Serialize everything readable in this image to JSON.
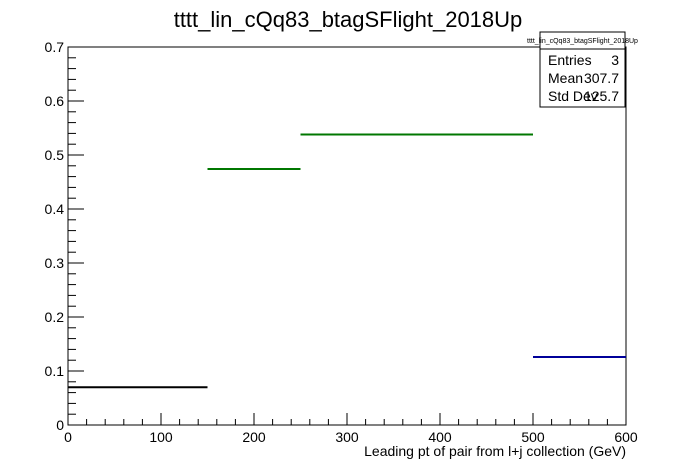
{
  "chart_data": {
    "type": "bar",
    "title": "tttt_lin_cQq83_btagSFlight_2018Up",
    "xlabel": "Leading pt of pair from l+j collection (GeV)",
    "ylabel": "",
    "xlim": [
      0,
      600
    ],
    "ylim": [
      0,
      0.7
    ],
    "x_ticks": [
      "0",
      "100",
      "200",
      "300",
      "400",
      "500",
      "600"
    ],
    "y_ticks": [
      "0",
      "0.1",
      "0.2",
      "0.3",
      "0.4",
      "0.5",
      "0.6",
      "0.7"
    ],
    "grid": false,
    "bins": [
      {
        "x_low": 0,
        "x_high": 150,
        "value": 0.07,
        "color": "#000000"
      },
      {
        "x_low": 150,
        "x_high": 250,
        "value": 0.474,
        "color": "#007700"
      },
      {
        "x_low": 250,
        "x_high": 500,
        "value": 0.538,
        "color": "#007700"
      },
      {
        "x_low": 500,
        "x_high": 600,
        "value": 0.126,
        "color": "#000099"
      }
    ],
    "stats_box": {
      "title": "tttt_lin_cQq83_btagSFlight_2018Up",
      "entries_label": "Entries",
      "entries_value": "3",
      "mean_label": "Mean",
      "mean_value": "307.7",
      "stddev_label": "Std Dev",
      "stddev_value": "125.7"
    }
  }
}
